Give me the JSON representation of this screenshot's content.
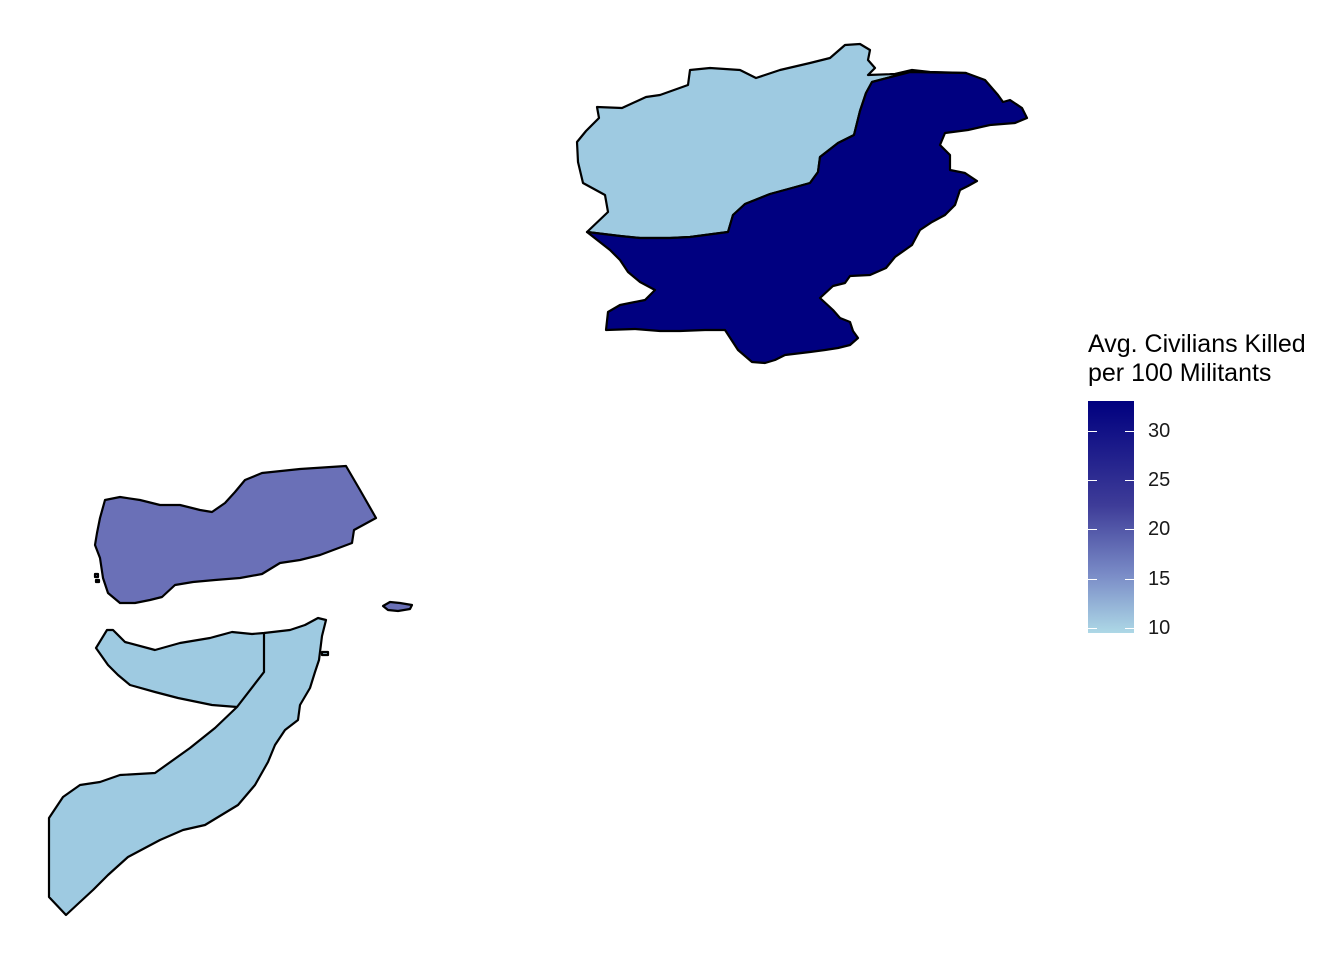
{
  "legend": {
    "title_line1": "Avg. Civilians Killed",
    "title_line2": "per 100 Militants",
    "min": 9.5,
    "max": 33,
    "low_color": "#ADD8E6",
    "high_color": "#00007F",
    "ticks": [
      {
        "value": 30,
        "label": "30"
      },
      {
        "value": 25,
        "label": "25"
      },
      {
        "value": 20,
        "label": "20"
      },
      {
        "value": 15,
        "label": "15"
      },
      {
        "value": 10,
        "label": "10"
      }
    ]
  },
  "regions": [
    {
      "name": "Afghanistan",
      "color": "#9ECAE1"
    },
    {
      "name": "Pakistan",
      "color": "#000080"
    },
    {
      "name": "Yemen",
      "color": "#6A70B7"
    },
    {
      "name": "Somalia",
      "color": "#9ECAE1"
    }
  ]
}
